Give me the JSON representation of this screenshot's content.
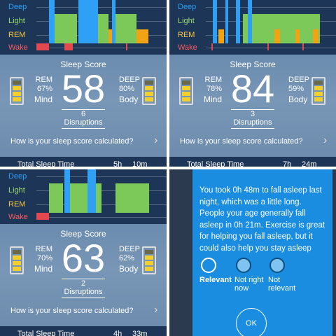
{
  "panels": [
    {
      "legend": [
        "Deep",
        "Light",
        "REM",
        "Wake"
      ],
      "score_title": "Sleep Score",
      "score": "58",
      "rem_label": "REM",
      "rem_pct": "67%",
      "rem_caption": "Mind",
      "deep_label": "DEEP",
      "deep_pct": "80%",
      "deep_caption": "Body",
      "disruptions": "6",
      "disruptions_label": "Disruptions",
      "question": "How is your sleep score calculated?",
      "total_label": "Total Sleep Time",
      "hours": "5h",
      "minutes": "10m"
    },
    {
      "legend": [
        "Deep",
        "Light",
        "REM",
        "Wake"
      ],
      "score_title": "Sleep Score",
      "score": "84",
      "rem_label": "REM",
      "rem_pct": "78%",
      "rem_caption": "Mind",
      "deep_label": "DEEP",
      "deep_pct": "59%",
      "deep_caption": "Body",
      "disruptions": "3",
      "disruptions_label": "Disruptions",
      "question": "How is your sleep score calculated?",
      "total_label": "Total Sleep Time",
      "hours": "7h",
      "minutes": "24m"
    },
    {
      "legend": [
        "Deep",
        "Light",
        "REM",
        "Wake"
      ],
      "score_title": "Sleep Score",
      "score": "63",
      "rem_label": "REM",
      "rem_pct": "70%",
      "rem_caption": "Mind",
      "deep_label": "DEEP",
      "deep_pct": "62%",
      "deep_caption": "Body",
      "disruptions": "2",
      "disruptions_label": "Disruptions",
      "question": "How is your sleep score calculated?",
      "total_label": "Total Sleep Time",
      "hours": "4h",
      "minutes": "33m"
    }
  ],
  "dialog": {
    "message": "You took 0h 48m to fall asleep last night, which was a little long. People your age generally fall asleep in 0h 21m. Exercise is great for helping you fall asleep, but it could also help you stay asleep",
    "options": [
      "Relevant",
      "Not right now",
      "Not relevant"
    ],
    "button": "OK"
  }
}
